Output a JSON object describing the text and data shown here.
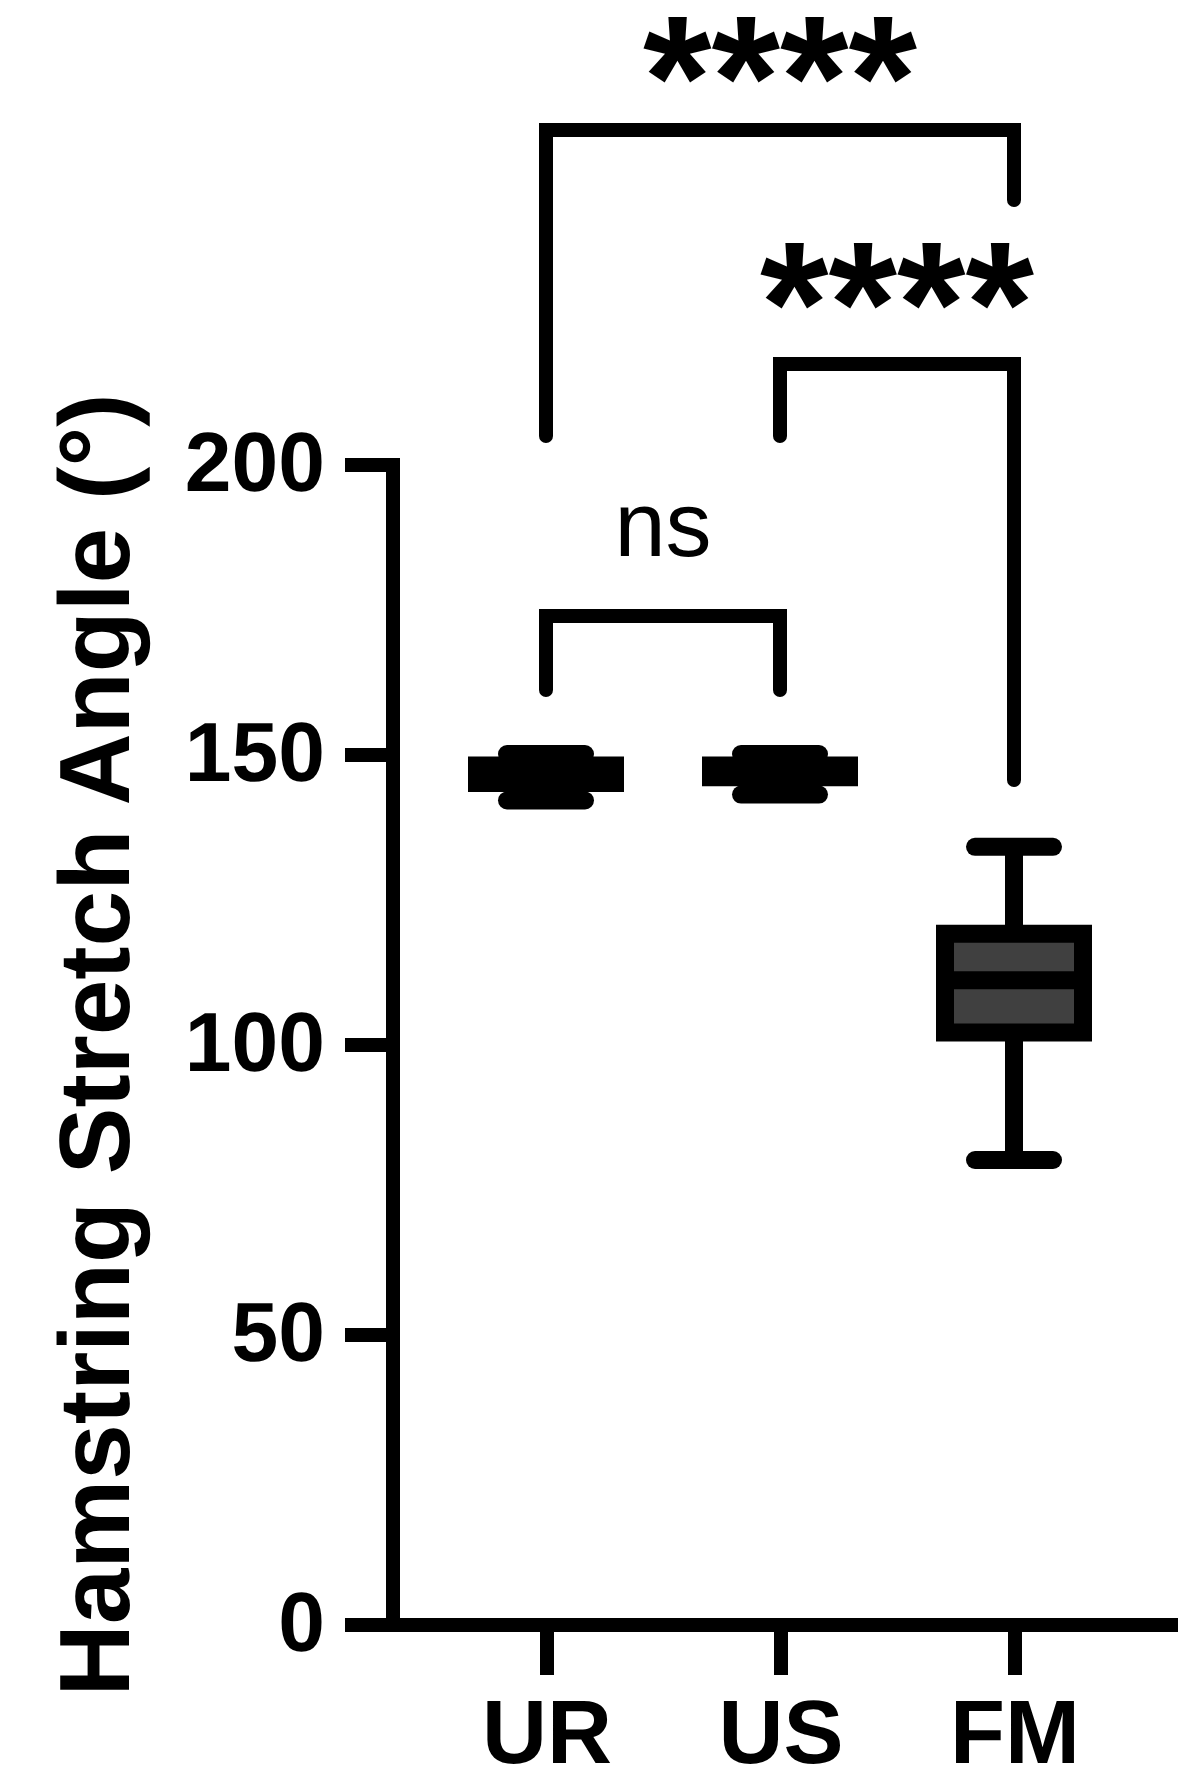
{
  "chart_data": {
    "type": "box",
    "ylabel": "Hamstring Stretch Angle (°)",
    "categories": [
      "UR",
      "US",
      "FM"
    ],
    "boxes": [
      {
        "low": 142,
        "q1": 145,
        "median": 147,
        "q3": 148,
        "high": 150
      },
      {
        "low": 143,
        "q1": 146,
        "median": 147,
        "q3": 148,
        "high": 150
      },
      {
        "low": 80,
        "q1": 102,
        "median": 111,
        "q3": 119,
        "high": 134
      }
    ],
    "color": "#404040",
    "ylim": [
      0,
      200
    ],
    "yticks": [
      0,
      50,
      100,
      150,
      200
    ],
    "annotations": [
      "****",
      "****",
      "ns"
    ]
  }
}
